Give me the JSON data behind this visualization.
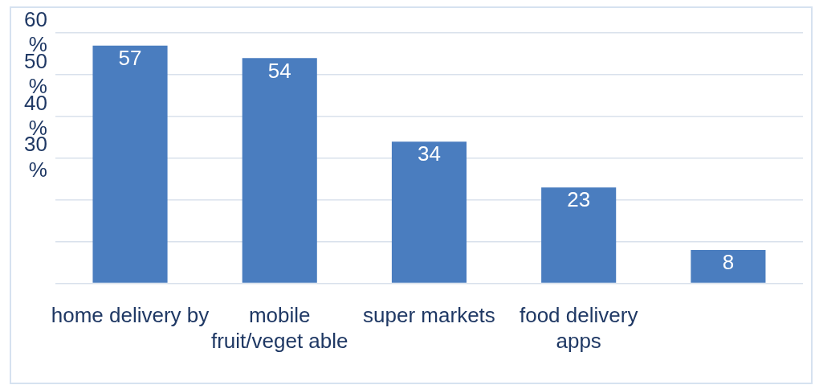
{
  "chart_data": {
    "type": "bar",
    "categories": [
      "home delivery by",
      "mobile fruit/veget able",
      "super markets",
      "food delivery apps",
      null
    ],
    "values": [
      57,
      54,
      34,
      23,
      8
    ],
    "color": "#4a7dbf",
    "ylim": [
      0,
      60
    ],
    "yticks": [
      {
        "value": 0,
        "label": null
      },
      {
        "value": 10,
        "label": null
      },
      {
        "value": 20,
        "label": null
      },
      {
        "value": 30,
        "label": "30 %"
      },
      {
        "value": 40,
        "label": "40 %"
      },
      {
        "value": 50,
        "label": "50 %"
      },
      {
        "value": 60,
        "label": "60 %"
      }
    ],
    "grid": "y",
    "legend": false,
    "data_labels": true
  }
}
